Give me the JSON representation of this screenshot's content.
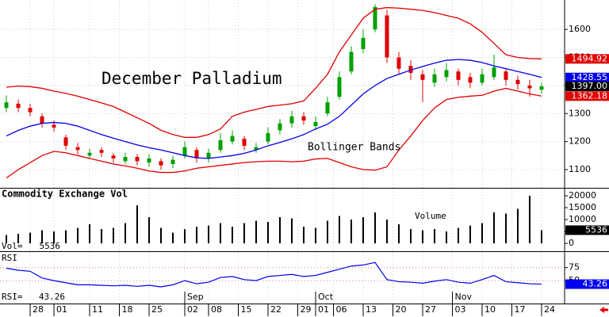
{
  "chart_data": [
    {
      "type": "candlestick",
      "title": "December Palladium",
      "annotation": "Bollinger Bands",
      "x": [
        0,
        2,
        4,
        6,
        8,
        10,
        12,
        14,
        16,
        18,
        20,
        22,
        24,
        26,
        28,
        30,
        32,
        34,
        36,
        38,
        40,
        42,
        44,
        46,
        48,
        50,
        52,
        54,
        56,
        58,
        60,
        62,
        64,
        66,
        68,
        70,
        72,
        74,
        76,
        78,
        80,
        82,
        84,
        86,
        88,
        90
      ],
      "open": [
        1320,
        1335,
        1320,
        1290,
        1260,
        1215,
        1180,
        1150,
        1170,
        1150,
        1130,
        1145,
        1125,
        1130,
        1120,
        1150,
        1170,
        1140,
        1170,
        1200,
        1210,
        1170,
        1200,
        1240,
        1265,
        1290,
        1255,
        1300,
        1360,
        1450,
        1530,
        1600,
        1650,
        1500,
        1470,
        1440,
        1410,
        1430,
        1450,
        1430,
        1410,
        1430,
        1450,
        1420,
        1400,
        1385
      ],
      "high": [
        1365,
        1350,
        1335,
        1300,
        1275,
        1225,
        1195,
        1175,
        1180,
        1160,
        1160,
        1155,
        1155,
        1140,
        1150,
        1200,
        1180,
        1175,
        1230,
        1240,
        1220,
        1195,
        1250,
        1280,
        1310,
        1305,
        1290,
        1360,
        1450,
        1540,
        1600,
        1690,
        1670,
        1520,
        1490,
        1455,
        1460,
        1480,
        1460,
        1445,
        1460,
        1510,
        1460,
        1435,
        1420,
        1410
      ],
      "low": [
        1305,
        1305,
        1290,
        1250,
        1235,
        1170,
        1155,
        1140,
        1145,
        1125,
        1120,
        1115,
        1110,
        1100,
        1105,
        1140,
        1125,
        1125,
        1160,
        1190,
        1170,
        1160,
        1190,
        1225,
        1250,
        1260,
        1240,
        1290,
        1350,
        1440,
        1515,
        1590,
        1480,
        1440,
        1420,
        1340,
        1395,
        1415,
        1400,
        1390,
        1400,
        1420,
        1400,
        1385,
        1360,
        1370
      ],
      "close": [
        1340,
        1320,
        1305,
        1265,
        1250,
        1185,
        1170,
        1160,
        1160,
        1140,
        1145,
        1130,
        1140,
        1115,
        1135,
        1180,
        1140,
        1160,
        1205,
        1220,
        1185,
        1180,
        1230,
        1265,
        1290,
        1275,
        1270,
        1340,
        1430,
        1520,
        1570,
        1680,
        1500,
        1460,
        1445,
        1420,
        1440,
        1455,
        1420,
        1410,
        1440,
        1465,
        1420,
        1405,
        1390,
        1397
      ],
      "up_color": "#00a000",
      "down_color": "#e00000",
      "last_close": {
        "value": 1397,
        "label": "1397.00"
      },
      "bands": [
        {
          "color": "#e00000",
          "values": [
            1394,
            1398,
            1396,
            1390,
            1380,
            1372,
            1362,
            1350,
            1338,
            1325,
            1305,
            1285,
            1265,
            1240,
            1225,
            1215,
            1215,
            1225,
            1245,
            1290,
            1305,
            1315,
            1325,
            1330,
            1335,
            1345,
            1390,
            1440,
            1520,
            1580,
            1640,
            1672,
            1678,
            1676,
            1672,
            1668,
            1660,
            1650,
            1640,
            1620,
            1590,
            1550,
            1510,
            1500,
            1496,
            1494.92
          ]
        },
        {
          "color": "#0000ee",
          "values": [
            1220,
            1240,
            1255,
            1265,
            1268,
            1265,
            1255,
            1240,
            1225,
            1212,
            1200,
            1188,
            1178,
            1170,
            1160,
            1150,
            1142,
            1140,
            1145,
            1150,
            1158,
            1170,
            1185,
            1197,
            1210,
            1225,
            1245,
            1262,
            1290,
            1330,
            1370,
            1400,
            1425,
            1440,
            1455,
            1468,
            1480,
            1490,
            1493,
            1490,
            1482,
            1470,
            1460,
            1450,
            1440,
            1428.55
          ]
        },
        {
          "color": "#e00000",
          "values": [
            1070,
            1100,
            1125,
            1150,
            1165,
            1160,
            1150,
            1140,
            1130,
            1120,
            1113,
            1105,
            1095,
            1090,
            1090,
            1095,
            1105,
            1110,
            1115,
            1120,
            1125,
            1128,
            1130,
            1130,
            1128,
            1130,
            1138,
            1140,
            1125,
            1110,
            1100,
            1098,
            1110,
            1170,
            1220,
            1275,
            1320,
            1350,
            1358,
            1362,
            1365,
            1380,
            1390,
            1380,
            1370,
            1362.18
          ]
        }
      ],
      "xlim": [
        -1.07,
        93.87
      ],
      "ylim": [
        1035,
        1705
      ],
      "yticks": [
        1100,
        1200,
        1300,
        1400,
        1500,
        1600
      ],
      "grid": true
    },
    {
      "type": "bar",
      "title": "Commodity Exchange Vol",
      "annotation": "Volume",
      "readout_label": "Vol=",
      "x": [
        0,
        2,
        4,
        6,
        8,
        10,
        12,
        14,
        16,
        18,
        20,
        22,
        24,
        26,
        28,
        30,
        32,
        34,
        36,
        38,
        40,
        42,
        44,
        46,
        48,
        50,
        52,
        54,
        56,
        58,
        60,
        62,
        64,
        66,
        68,
        70,
        72,
        74,
        76,
        78,
        80,
        82,
        84,
        86,
        88,
        90
      ],
      "values": [
        3500,
        4000,
        4500,
        5500,
        5000,
        5500,
        6500,
        8000,
        6000,
        6500,
        8500,
        16000,
        11000,
        6500,
        4500,
        6000,
        7000,
        7500,
        8500,
        7000,
        8500,
        9500,
        9000,
        11000,
        10500,
        7000,
        6500,
        9500,
        11500,
        10000,
        11000,
        13000,
        10000,
        8000,
        6000,
        5500,
        6000,
        5000,
        6500,
        7500,
        8500,
        13000,
        12500,
        14500,
        20000,
        5536
      ],
      "color": "#000000",
      "xlim": [
        -1.07,
        93.87
      ],
      "ylim": [
        -3300,
        23000
      ],
      "yticks": [
        0,
        5000,
        10000,
        15000,
        20000
      ],
      "grid": false
    },
    {
      "type": "line",
      "title": "RSI",
      "readout_label": "RSI=",
      "x": [
        0,
        2,
        4,
        6,
        8,
        10,
        12,
        14,
        16,
        18,
        20,
        22,
        24,
        26,
        28,
        30,
        32,
        34,
        36,
        38,
        40,
        42,
        44,
        46,
        48,
        50,
        52,
        54,
        56,
        58,
        60,
        62,
        64,
        66,
        68,
        70,
        72,
        74,
        76,
        78,
        80,
        82,
        84,
        86,
        88,
        90
      ],
      "values": [
        74,
        70,
        68,
        55,
        50,
        46,
        42,
        42,
        41,
        40,
        41,
        39,
        41,
        38,
        42,
        50,
        44,
        47,
        56,
        58,
        52,
        50,
        58,
        60,
        62,
        58,
        60,
        66,
        72,
        78,
        80,
        85,
        52,
        48,
        47,
        45,
        49,
        52,
        47,
        45,
        52,
        60,
        48,
        46,
        44,
        43.26
      ],
      "color": "#0000ee",
      "xlim": [
        -1.07,
        93.87
      ],
      "ylim": [
        6,
        105
      ],
      "yticks": [
        50,
        75
      ],
      "grid": true,
      "xticks": [
        {
          "value": 4,
          "label": "28"
        },
        {
          "value": 8,
          "label": "01"
        },
        {
          "value": 14,
          "label": "11"
        },
        {
          "value": 19,
          "label": "18"
        },
        {
          "value": 24,
          "label": "25"
        },
        {
          "value": 30,
          "label": "02"
        },
        {
          "value": 34,
          "label": "08"
        },
        {
          "value": 39,
          "label": "15"
        },
        {
          "value": 44,
          "label": "22"
        },
        {
          "value": 49,
          "label": "29"
        },
        {
          "value": 52,
          "label": "01"
        },
        {
          "value": 55,
          "label": "06"
        },
        {
          "value": 60,
          "label": "13"
        },
        {
          "value": 65,
          "label": "20"
        },
        {
          "value": 70,
          "label": "27"
        },
        {
          "value": 75,
          "label": "03"
        },
        {
          "value": 80,
          "label": "10"
        },
        {
          "value": 85,
          "label": "17"
        },
        {
          "value": 90,
          "label": "24"
        }
      ],
      "month_labels": [
        {
          "value": 30,
          "label": "Sep"
        },
        {
          "value": 52,
          "label": "Oct"
        },
        {
          "value": 75,
          "label": "Nov"
        }
      ]
    }
  ]
}
